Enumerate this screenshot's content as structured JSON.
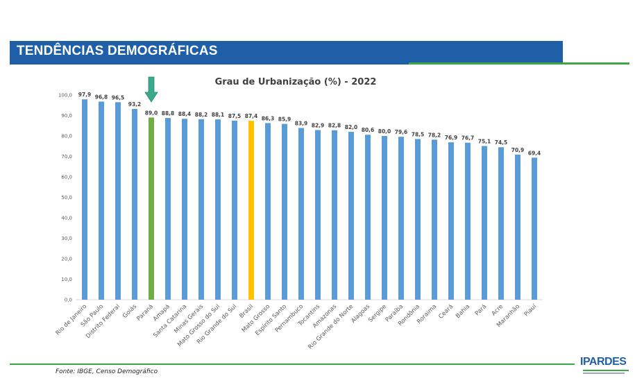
{
  "header": {
    "title": "TENDÊNCIAS DEMOGRÁFICAS"
  },
  "footer": {
    "source": "Fonte: IBGE, Censo Demográfico",
    "logo": "IPARDES"
  },
  "colors": {
    "default_bar": "#5b9bd5",
    "highlight_state": "#70ad47",
    "national": "#ffc000",
    "arrow": "#3aaa8a"
  },
  "chart_data": {
    "type": "bar",
    "title": "Grau de Urbanização (%) - 2022",
    "xlabel": "",
    "ylabel": "",
    "ylim": [
      0,
      100
    ],
    "yticks": [
      "0,0",
      "10,0",
      "20,0",
      "30,0",
      "40,0",
      "50,0",
      "60,0",
      "70,0",
      "80,0",
      "90,0",
      "100,0"
    ],
    "categories": [
      "Rio de Janeiro",
      "São Paulo",
      "Distrito Federal",
      "Goiás",
      "Paraná",
      "Amapá",
      "Santa Catarina",
      "Minas Gerais",
      "Mato Grosso do Sul",
      "Rio Grande do Sul",
      "Brasil",
      "Mato Grosso",
      "Espírito Santo",
      "Pernambuco",
      "Tocantins",
      "Amazonas",
      "Rio Grande do Norte",
      "Alagoas",
      "Sergipe",
      "Paraíba",
      "Rondônia",
      "Roraima",
      "Ceará",
      "Bahia",
      "Pará",
      "Acre",
      "Maranhão",
      "Piauí"
    ],
    "values": [
      97.9,
      96.8,
      96.5,
      93.2,
      89.0,
      88.8,
      88.4,
      88.2,
      88.1,
      87.5,
      87.4,
      86.3,
      85.9,
      83.9,
      82.9,
      82.8,
      82.0,
      80.6,
      80.0,
      79.6,
      78.5,
      78.2,
      76.9,
      76.7,
      75.1,
      74.5,
      70.9,
      69.4
    ],
    "labels": [
      "97,9",
      "96,8",
      "96,5",
      "93,2",
      "89,0",
      "88,8",
      "88,4",
      "88,2",
      "88,1",
      "87,5",
      "87,4",
      "86,3",
      "85,9",
      "83,9",
      "82,9",
      "82,8",
      "82,0",
      "80,6",
      "80,0",
      "79,6",
      "78,5",
      "78,2",
      "76,9",
      "76,7",
      "75,1",
      "74,5",
      "70,9",
      "69,4"
    ],
    "highlight": {
      "Paraná": "highlight_state",
      "Brasil": "national"
    },
    "annotation": {
      "type": "arrow",
      "target": "Paraná"
    }
  }
}
